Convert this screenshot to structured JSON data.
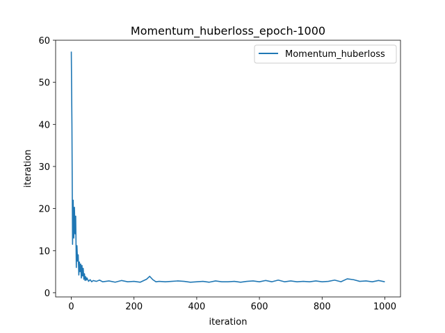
{
  "chart_data": {
    "type": "line",
    "title": "Momentum_huberloss_epoch-1000",
    "xlabel": "iteration",
    "ylabel": "iteration",
    "xlim": [
      -50,
      1050
    ],
    "ylim": [
      -1,
      60
    ],
    "xticks": [
      0,
      200,
      400,
      600,
      800,
      1000
    ],
    "yticks": [
      0,
      10,
      20,
      30,
      40,
      50,
      60
    ],
    "grid": false,
    "legend_position": "top-right",
    "series": [
      {
        "name": "Momentum_huberloss",
        "color": "#1f77b4",
        "x": [
          0,
          2,
          4,
          6,
          8,
          10,
          12,
          14,
          16,
          18,
          20,
          22,
          24,
          26,
          28,
          30,
          32,
          34,
          36,
          38,
          40,
          42,
          44,
          46,
          48,
          50,
          55,
          60,
          65,
          70,
          80,
          90,
          100,
          120,
          140,
          160,
          180,
          200,
          220,
          240,
          250,
          260,
          270,
          280,
          300,
          320,
          340,
          360,
          380,
          400,
          420,
          440,
          460,
          480,
          500,
          520,
          540,
          560,
          580,
          600,
          620,
          640,
          660,
          680,
          700,
          720,
          740,
          760,
          780,
          800,
          820,
          840,
          860,
          880,
          900,
          920,
          940,
          960,
          980,
          1000
        ],
        "values": [
          57.3,
          40.0,
          11.5,
          22.0,
          13.0,
          20.3,
          14.0,
          18.2,
          6.0,
          11.2,
          7.5,
          9.0,
          4.2,
          7.3,
          5.0,
          6.8,
          3.5,
          6.5,
          4.0,
          5.8,
          3.2,
          4.5,
          2.9,
          3.8,
          3.0,
          3.5,
          2.7,
          3.1,
          2.6,
          2.9,
          2.7,
          3.0,
          2.6,
          2.8,
          2.5,
          2.9,
          2.6,
          2.7,
          2.5,
          3.2,
          3.9,
          3.1,
          2.6,
          2.7,
          2.6,
          2.7,
          2.8,
          2.7,
          2.5,
          2.6,
          2.7,
          2.5,
          2.8,
          2.6,
          2.6,
          2.7,
          2.5,
          2.7,
          2.8,
          2.6,
          2.9,
          2.6,
          3.0,
          2.6,
          2.8,
          2.6,
          2.7,
          2.6,
          2.8,
          2.6,
          2.7,
          3.0,
          2.6,
          3.3,
          3.1,
          2.7,
          2.8,
          2.6,
          2.9,
          2.6
        ]
      }
    ]
  }
}
